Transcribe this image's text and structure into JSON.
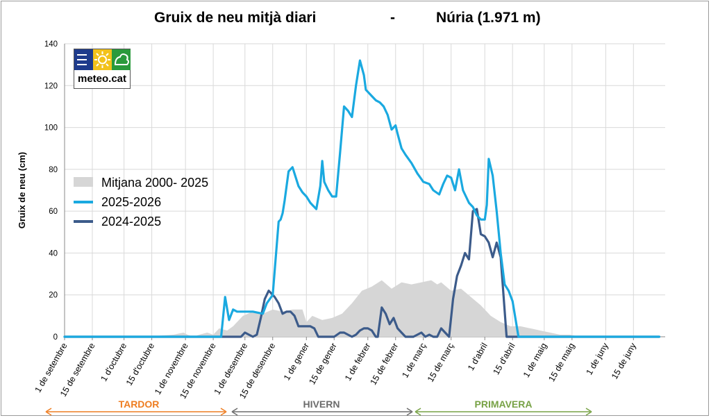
{
  "title_left": "Gruix de neu mitjà diari",
  "title_sep": "-",
  "title_right": "Núria (1.971 m)",
  "logo": {
    "brand": "meteo.cat",
    "icons": [
      "waves-icon",
      "sun-icon",
      "mountain-icon"
    ]
  },
  "colors": {
    "mean_fill": "#d6d6d6",
    "season_2526": "#1aa9e0",
    "season_2425": "#3c5b8a",
    "tardor": "#ee7d21",
    "hivern": "#6b6b6b",
    "primavera": "#77a245"
  },
  "seasons": [
    {
      "label": "TARDOR",
      "color": "#ee7d21"
    },
    {
      "label": "HIVERN",
      "color": "#6b6b6b"
    },
    {
      "label": "PRIMAVERA",
      "color": "#77a245"
    }
  ],
  "chart_data": {
    "type": "area",
    "ylabel": "Gruix de neu (cm)",
    "ylim": [
      0,
      140
    ],
    "yticks": [
      0,
      20,
      40,
      60,
      80,
      100,
      120,
      140
    ],
    "xlim": [
      0,
      303
    ],
    "x_unit": "day index from 1 de setembre",
    "xticks": [
      {
        "day": 0,
        "label": "1 de setembre"
      },
      {
        "day": 14,
        "label": "15 de setembre"
      },
      {
        "day": 30,
        "label": "1 d'octubre"
      },
      {
        "day": 44,
        "label": "15 d'octubre"
      },
      {
        "day": 61,
        "label": "1 de novembre"
      },
      {
        "day": 75,
        "label": "15 de novembre"
      },
      {
        "day": 91,
        "label": "1 de desembre"
      },
      {
        "day": 105,
        "label": "15 de desembre"
      },
      {
        "day": 122,
        "label": "1 de gener"
      },
      {
        "day": 136,
        "label": "15 de gener"
      },
      {
        "day": 153,
        "label": "1 de febrer"
      },
      {
        "day": 167,
        "label": "15 de febrer"
      },
      {
        "day": 181,
        "label": "1 de març"
      },
      {
        "day": 195,
        "label": "15 de març"
      },
      {
        "day": 212,
        "label": "1 d'abril"
      },
      {
        "day": 226,
        "label": "15 d'abril"
      },
      {
        "day": 242,
        "label": "1 de maig"
      },
      {
        "day": 256,
        "label": "15 de maig"
      },
      {
        "day": 273,
        "label": "1 de juny"
      },
      {
        "day": 287,
        "label": "15 de juny"
      }
    ],
    "grid": true,
    "legend": "left-middle",
    "series": [
      {
        "name": "Mitjana  2000- 2025",
        "kind": "area",
        "color": "#d6d6d6",
        "x": [
          0,
          40,
          55,
          60,
          62,
          65,
          68,
          72,
          75,
          77,
          78,
          82,
          85,
          88,
          90,
          95,
          100,
          105,
          110,
          115,
          120,
          122,
          125,
          130,
          135,
          140,
          145,
          150,
          155,
          160,
          165,
          170,
          175,
          180,
          185,
          188,
          190,
          195,
          200,
          205,
          210,
          215,
          220,
          225,
          230,
          235,
          240,
          245,
          250,
          255,
          260,
          265,
          270,
          303
        ],
        "y": [
          0,
          0,
          1,
          2,
          1,
          0,
          1,
          2,
          1,
          3,
          4,
          3,
          5,
          8,
          10,
          12,
          11,
          13,
          12,
          13,
          13,
          7,
          10,
          8,
          9,
          11,
          16,
          22,
          24,
          27,
          23,
          26,
          25,
          26,
          27,
          25,
          26,
          22,
          23,
          19,
          15,
          10,
          7,
          5,
          5,
          4,
          3,
          2,
          1,
          1,
          0,
          0,
          0,
          0
        ]
      },
      {
        "name": "2025-2026",
        "kind": "line",
        "color": "#1aa9e0",
        "x": [
          0,
          79,
          81,
          83,
          85,
          87,
          90,
          95,
          100,
          102,
          105,
          108,
          109,
          110,
          111,
          113,
          115,
          117,
          118,
          120,
          122,
          124,
          125,
          127,
          129,
          130,
          131,
          133,
          135,
          137,
          139,
          141,
          143,
          145,
          147,
          149,
          151,
          152,
          153,
          155,
          157,
          159,
          161,
          163,
          165,
          167,
          168,
          170,
          172,
          175,
          178,
          181,
          184,
          186,
          189,
          191,
          193,
          195,
          197,
          199,
          201,
          204,
          206,
          208,
          210,
          212,
          213,
          214,
          216,
          218,
          220,
          222,
          224,
          226,
          229,
          300
        ],
        "y": [
          0,
          0,
          19,
          8,
          13,
          12,
          12,
          12,
          11,
          16,
          20,
          55,
          56,
          59,
          65,
          79,
          81,
          75,
          72,
          69,
          67,
          64,
          63,
          61,
          72,
          84,
          74,
          70,
          67,
          67,
          88,
          110,
          108,
          105,
          120,
          132,
          125,
          118,
          117,
          115,
          113,
          112,
          110,
          106,
          99,
          101,
          97,
          90,
          87,
          83,
          78,
          74,
          73,
          70,
          68,
          73,
          77,
          76,
          70,
          80,
          70,
          64,
          62,
          58,
          56,
          56,
          63,
          85,
          77,
          60,
          40,
          25,
          22,
          17,
          0,
          0
        ]
      },
      {
        "name": "2024-2025",
        "kind": "line",
        "color": "#3c5b8a",
        "x": [
          0,
          87,
          89,
          91,
          93,
          95,
          97,
          99,
          101,
          103,
          104,
          106,
          108,
          110,
          112,
          114,
          116,
          118,
          120,
          122,
          124,
          126,
          128,
          130,
          133,
          136,
          139,
          141,
          143,
          145,
          147,
          149,
          151,
          153,
          155,
          157,
          158,
          160,
          162,
          164,
          166,
          168,
          170,
          172,
          174,
          176,
          178,
          180,
          182,
          184,
          186,
          188,
          190,
          192,
          194,
          196,
          198,
          200,
          202,
          204,
          206,
          208,
          210,
          212,
          214,
          216,
          218,
          220,
          223,
          300
        ],
        "y": [
          0,
          0,
          0,
          2,
          1,
          0,
          1,
          9,
          18,
          22,
          21,
          19,
          16,
          11,
          12,
          12,
          10,
          5,
          5,
          5,
          5,
          4,
          0,
          0,
          0,
          0,
          2,
          2,
          1,
          0,
          1,
          3,
          4,
          4,
          3,
          0,
          0,
          14,
          11,
          6,
          9,
          4,
          2,
          0,
          0,
          0,
          1,
          2,
          0,
          1,
          0,
          0,
          4,
          2,
          0,
          18,
          29,
          34,
          40,
          37,
          60,
          61,
          49,
          48,
          45,
          38,
          45,
          38,
          0,
          0
        ]
      }
    ]
  }
}
